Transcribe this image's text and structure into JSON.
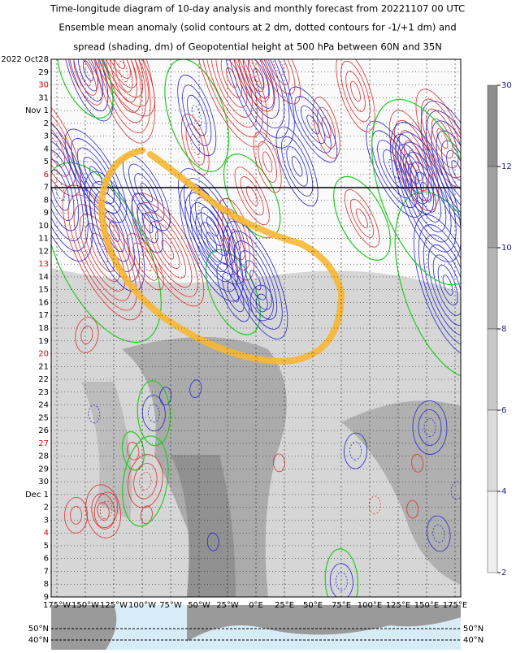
{
  "header": {
    "lines": [
      "Time-longitude diagram of 10-day analysis and monthly forecast from 20221107 00 UTC",
      "Ensemble mean anomaly (solid contours at 2 dm, dotted contours for -1/+1 dm) and",
      "spread (shading, dm) of Geopotential height at 500 hPa between 60N and 35N"
    ]
  },
  "y_labels": [
    {
      "text": "2022 Oct28",
      "color": "#000000"
    },
    {
      "text": "29",
      "color": "#000000"
    },
    {
      "text": "30",
      "color": "#e00000"
    },
    {
      "text": "31",
      "color": "#000000"
    },
    {
      "text": "Nov 1",
      "color": "#000000"
    },
    {
      "text": "2",
      "color": "#000000"
    },
    {
      "text": "3",
      "color": "#000000"
    },
    {
      "text": "4",
      "color": "#000000"
    },
    {
      "text": "5",
      "color": "#000000"
    },
    {
      "text": "6",
      "color": "#e00000"
    },
    {
      "text": "7",
      "color": "#000000"
    },
    {
      "text": "8",
      "color": "#000000"
    },
    {
      "text": "9",
      "color": "#000000"
    },
    {
      "text": "10",
      "color": "#000000"
    },
    {
      "text": "11",
      "color": "#000000"
    },
    {
      "text": "12",
      "color": "#000000"
    },
    {
      "text": "13",
      "color": "#e00000"
    },
    {
      "text": "14",
      "color": "#000000"
    },
    {
      "text": "15",
      "color": "#000000"
    },
    {
      "text": "16",
      "color": "#000000"
    },
    {
      "text": "17",
      "color": "#000000"
    },
    {
      "text": "18",
      "color": "#000000"
    },
    {
      "text": "19",
      "color": "#000000"
    },
    {
      "text": "20",
      "color": "#e00000"
    },
    {
      "text": "21",
      "color": "#000000"
    },
    {
      "text": "22",
      "color": "#000000"
    },
    {
      "text": "23",
      "color": "#000000"
    },
    {
      "text": "24",
      "color": "#000000"
    },
    {
      "text": "25",
      "color": "#000000"
    },
    {
      "text": "26",
      "color": "#000000"
    },
    {
      "text": "27",
      "color": "#e00000"
    },
    {
      "text": "28",
      "color": "#000000"
    },
    {
      "text": "29",
      "color": "#000000"
    },
    {
      "text": "30",
      "color": "#000000"
    },
    {
      "text": "Dec 1",
      "color": "#000000"
    },
    {
      "text": "2",
      "color": "#000000"
    },
    {
      "text": "3",
      "color": "#000000"
    },
    {
      "text": "4",
      "color": "#e00000"
    },
    {
      "text": "5",
      "color": "#000000"
    },
    {
      "text": "6",
      "color": "#000000"
    },
    {
      "text": "7",
      "color": "#000000"
    },
    {
      "text": "8",
      "color": "#000000"
    },
    {
      "text": "9",
      "color": "#000000"
    }
  ],
  "x_labels": [
    "175°W",
    "150°W",
    "125°W",
    "100°W",
    "75°W",
    "50°W",
    "25°W",
    "0°E",
    "25°E",
    "50°E",
    "75°E",
    "100°E",
    "125°E",
    "150°E",
    "175°E"
  ],
  "colorbar": {
    "labels": [
      "30",
      "12",
      "10",
      "8",
      "6",
      "4",
      "2"
    ],
    "colors": [
      "#8c8c8c",
      "#a0a0a0",
      "#b4b4b4",
      "#c8c8c8",
      "#dcdcdc",
      "#efefef"
    ]
  },
  "map": {
    "labels": [
      "50°N",
      "40°N"
    ]
  }
}
